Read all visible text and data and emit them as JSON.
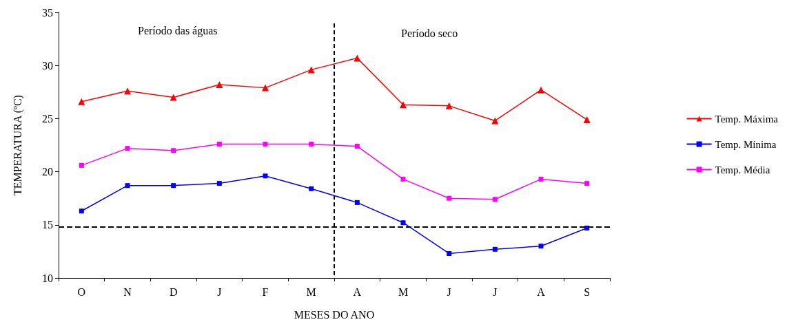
{
  "chart_data": {
    "type": "line",
    "xlabel": "MESES DO ANO",
    "ylabel": "TEMPERATURA (ºC)",
    "categories": [
      "O",
      "N",
      "D",
      "J",
      "F",
      "M",
      "A",
      "M",
      "J",
      "J",
      "A",
      "S"
    ],
    "series": [
      {
        "name": "Temp. Máxima",
        "color": "#ff0000",
        "marker": "triangle",
        "values": [
          26.6,
          27.6,
          27.0,
          28.2,
          27.9,
          29.6,
          30.7,
          26.3,
          26.2,
          24.8,
          27.7,
          24.9
        ]
      },
      {
        "name": "Temp. Mínima",
        "color": "#0000ff",
        "marker": "square",
        "values": [
          16.3,
          18.7,
          18.7,
          18.9,
          19.6,
          18.4,
          17.1,
          15.2,
          12.3,
          12.7,
          13.0,
          14.7
        ]
      },
      {
        "name": "Temp. Média",
        "color": "#ff00ff",
        "marker": "square",
        "values": [
          20.6,
          22.2,
          22.0,
          22.6,
          22.6,
          22.6,
          22.4,
          19.3,
          17.5,
          17.4,
          19.3,
          18.9
        ]
      }
    ],
    "ylim": [
      10,
      35
    ],
    "yticks": [
      10,
      15,
      20,
      25,
      30,
      35
    ],
    "legend": "right",
    "ref_lines": [
      {
        "axis": "y",
        "value": 14.8,
        "color": "#000000",
        "line_style": "dashed"
      }
    ],
    "annotations": [
      "Período das águas",
      "Período seco"
    ]
  }
}
